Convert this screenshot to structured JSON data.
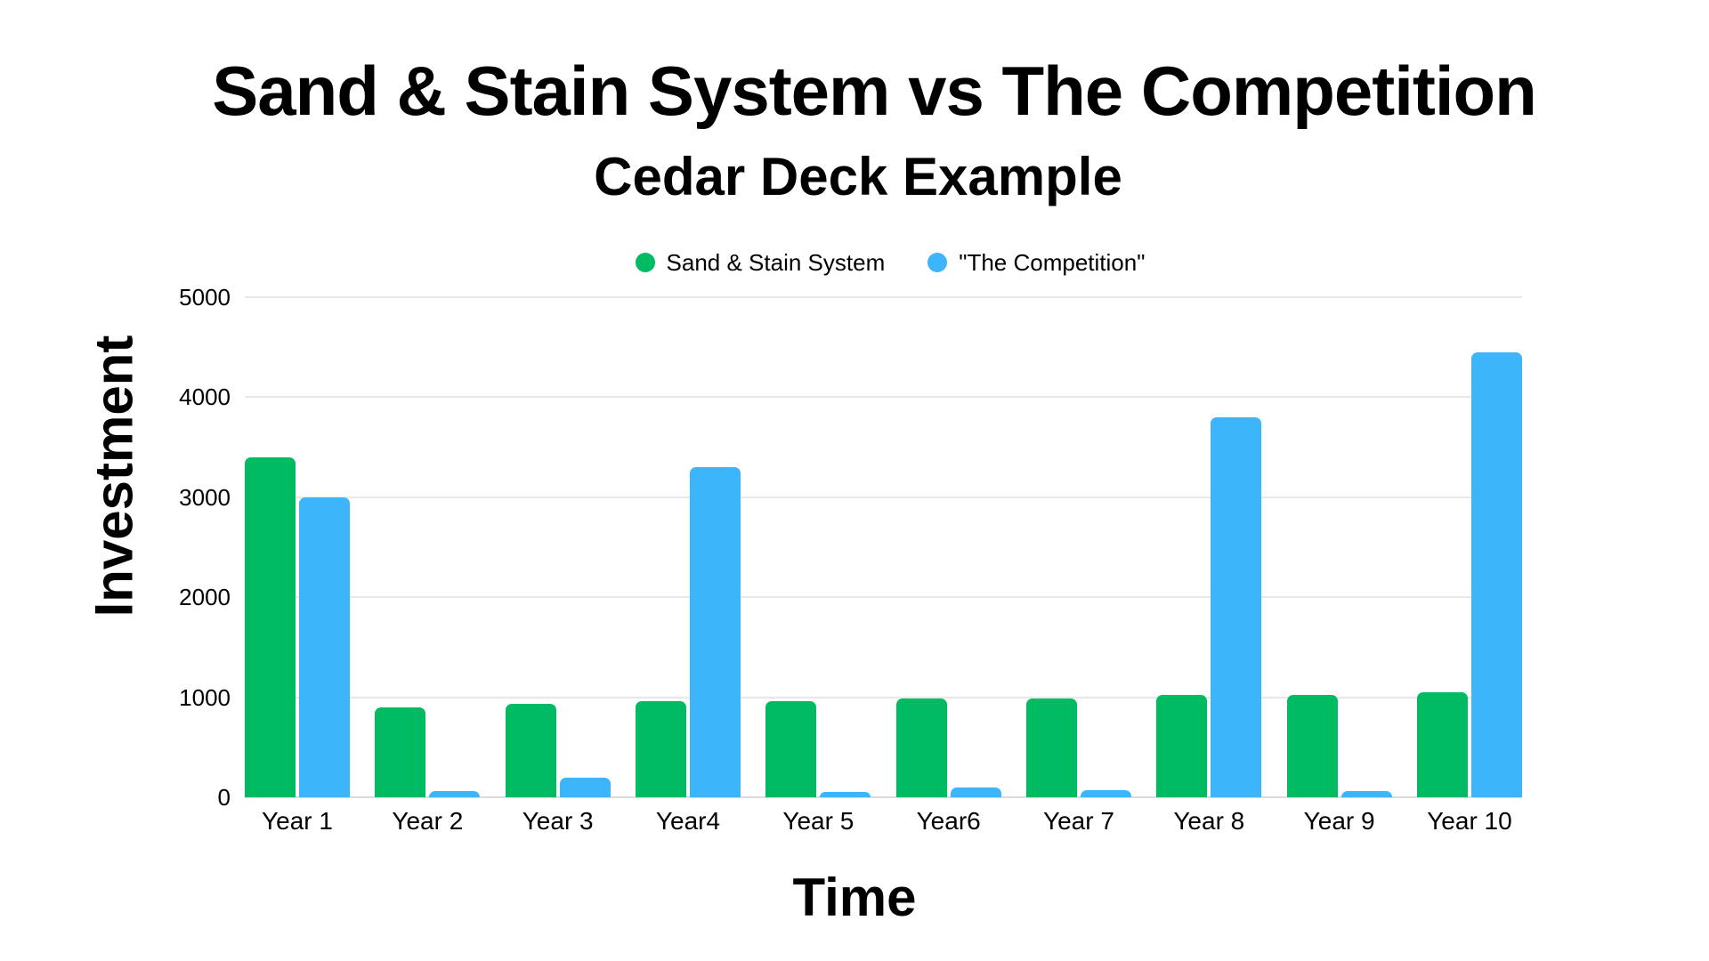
{
  "header": {
    "title": "Sand & Stain System vs The Competition",
    "subtitle": "Cedar Deck Example"
  },
  "legend": {
    "items": [
      {
        "label": "Sand & Stain System",
        "color": "#00BB61"
      },
      {
        "label": "\"The Competition\"",
        "color": "#3DB5FA"
      }
    ]
  },
  "colors": {
    "sand_stain_green": "#00BB61",
    "competition_blue": "#3DB5FA",
    "gridline": "#e8e8e8",
    "axis_line": "#dcdcdc",
    "text": "#000000",
    "background": "#ffffff"
  },
  "chart_data": {
    "type": "bar",
    "title": "Sand & Stain System vs The Competition",
    "subtitle": "Cedar Deck Example",
    "xlabel": "Time",
    "ylabel": "Investment",
    "categories": [
      "Year 1",
      "Year 2",
      "Year 3",
      "Year4",
      "Year 5",
      "Year6",
      "Year 7",
      "Year 8",
      "Year 9",
      "Year 10"
    ],
    "series": [
      {
        "name": "Sand & Stain System",
        "color": "#00BB61",
        "values": [
          3400,
          900,
          930,
          960,
          960,
          990,
          990,
          1020,
          1020,
          1050
        ]
      },
      {
        "name": "\"The Competition\"",
        "color": "#3DB5FA",
        "values": [
          3000,
          60,
          200,
          3300,
          50,
          100,
          75,
          3800,
          60,
          4450
        ]
      }
    ],
    "ylim": [
      0,
      5000
    ],
    "yticks": [
      5000,
      4000,
      3000,
      2000,
      1000,
      0
    ],
    "grid": "horizontal",
    "legend_position": "top"
  }
}
